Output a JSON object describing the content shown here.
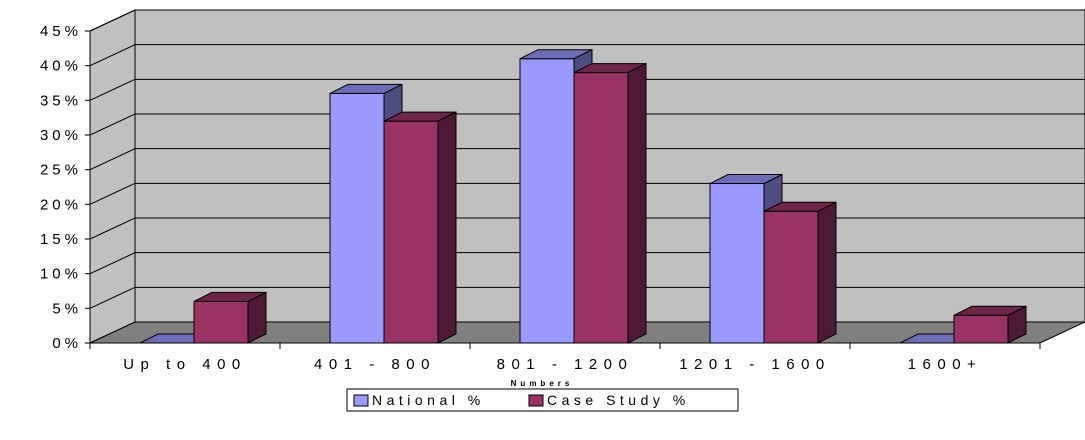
{
  "chart_data": {
    "type": "bar",
    "title": "",
    "xlabel": "Numbers",
    "ylabel": "",
    "categories": [
      "Up to 400",
      "401 - 800",
      "801 - 1200",
      "1201 - 1600",
      "1600+"
    ],
    "series": [
      {
        "name": "National %",
        "values": [
          0,
          36,
          41,
          23,
          0
        ],
        "color": "#9999FF"
      },
      {
        "name": "Case Study %",
        "values": [
          6,
          32,
          39,
          19,
          4
        ],
        "color": "#993366"
      }
    ],
    "ylim": [
      0,
      45
    ],
    "yticks": [
      "0%",
      "5%",
      "10%",
      "15%",
      "20%",
      "25%",
      "30%",
      "35%",
      "40%",
      "45%"
    ],
    "grid": true,
    "legend": "bottom",
    "three_d": true,
    "colors": {
      "wall": "#C0C0C0",
      "floor": "#808080",
      "grid": "#000000"
    }
  }
}
